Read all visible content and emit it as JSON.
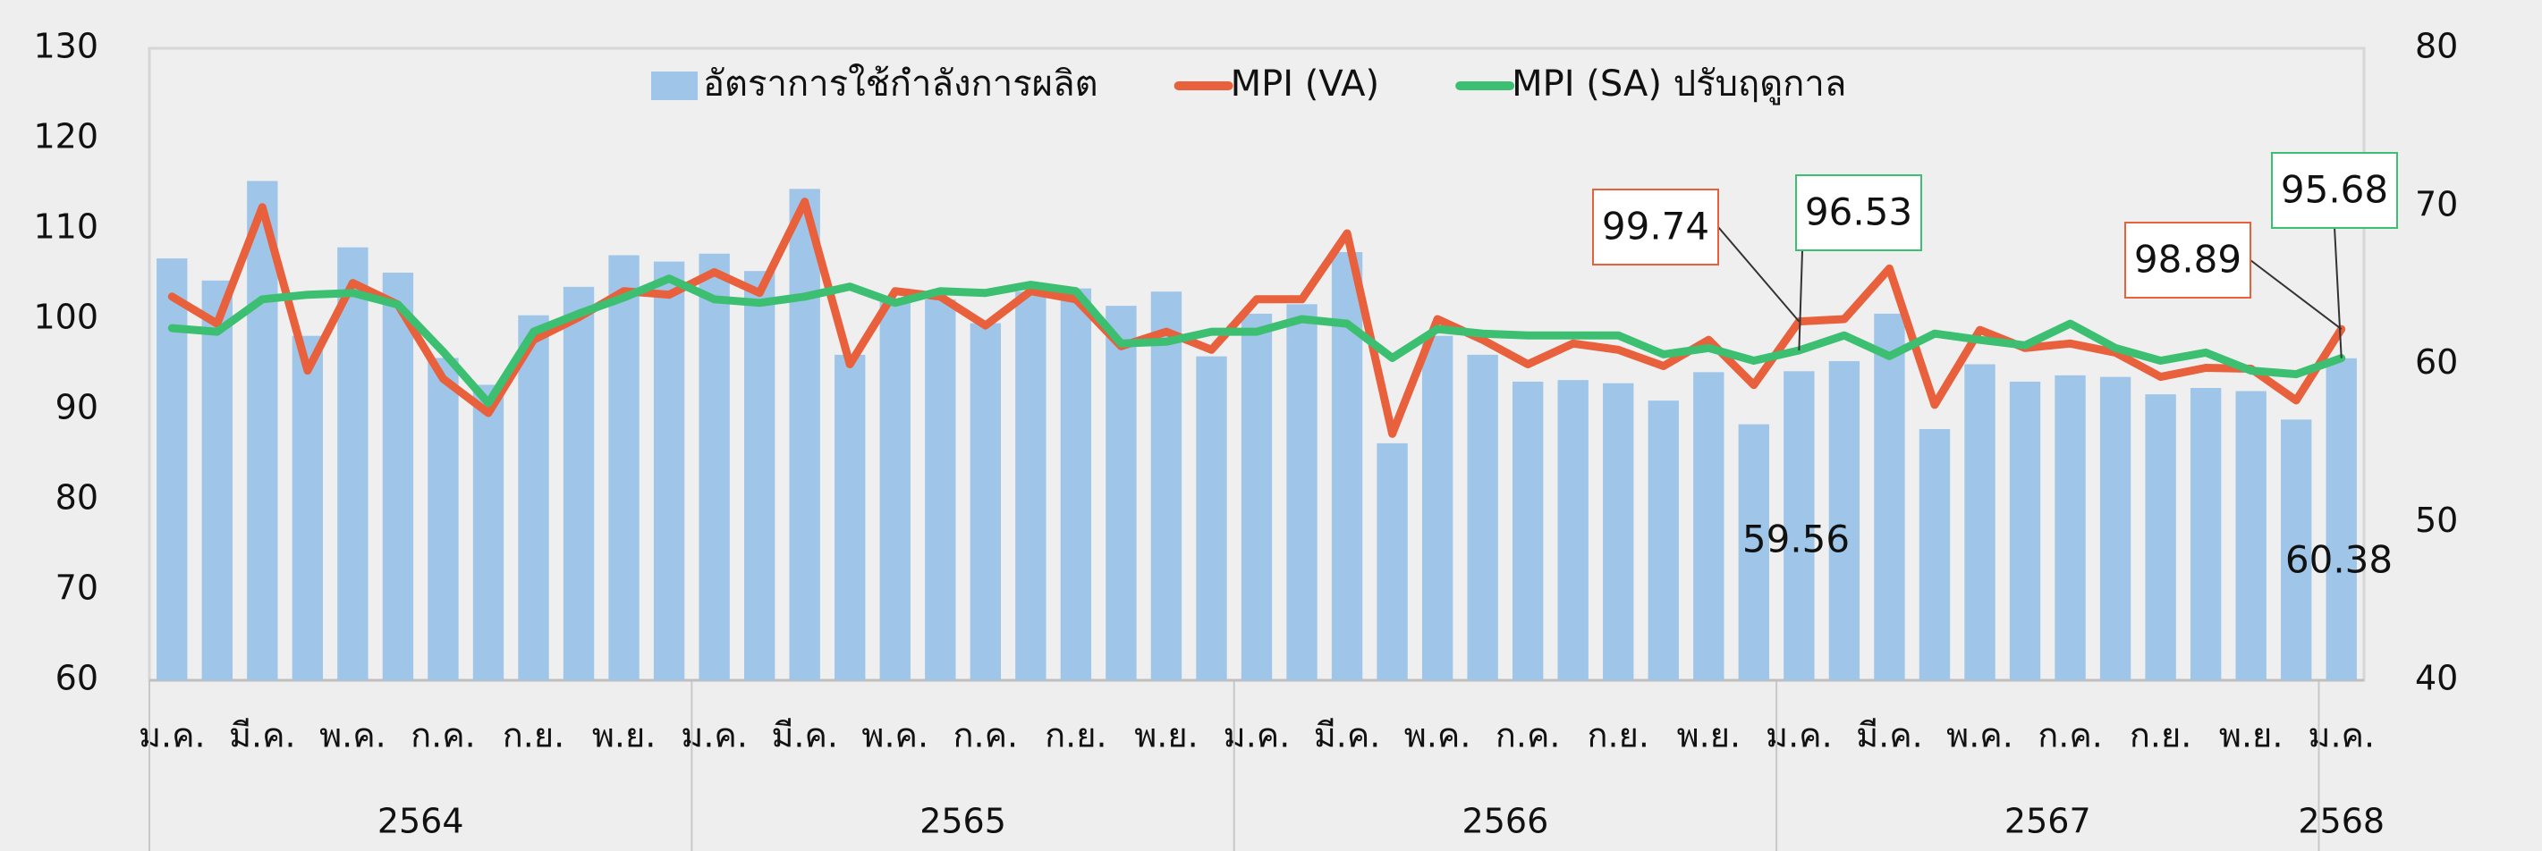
{
  "chart_data": {
    "type": "bar-line",
    "categories": [
      "ม.ค.",
      null,
      "มี.ค.",
      null,
      "พ.ค.",
      null,
      "ก.ค.",
      null,
      "ก.ย.",
      null,
      "พ.ย.",
      null,
      "ม.ค.",
      null,
      "มี.ค.",
      null,
      "พ.ค.",
      null,
      "ก.ค.",
      null,
      "ก.ย.",
      null,
      "พ.ย.",
      null,
      "ม.ค.",
      null,
      "มี.ค.",
      null,
      "พ.ค.",
      null,
      "ก.ค.",
      null,
      "ก.ย.",
      null,
      "พ.ย.",
      null,
      "ม.ค.",
      null,
      "มี.ค.",
      null,
      "พ.ค.",
      null,
      "ก.ค.",
      null,
      "ก.ย.",
      null,
      "พ.ย.",
      null,
      "ม.ค."
    ],
    "category_groups": [
      {
        "label": "2564",
        "span": 12
      },
      {
        "label": "2565",
        "span": 12
      },
      {
        "label": "2566",
        "span": 12
      },
      {
        "label": "2567",
        "span": 12
      },
      {
        "label": "2568",
        "span": 1
      }
    ],
    "series": [
      {
        "name": "อัตราการใช้กำลังการผลิต",
        "type": "bar",
        "axis": "y2",
        "color": "#9fc5e8",
        "label_indices": [
          36,
          48
        ],
        "values": [
          66.7,
          65.3,
          71.6,
          61.8,
          67.4,
          65.8,
          60.4,
          58.7,
          63.1,
          64.9,
          66.9,
          66.5,
          67.0,
          65.9,
          71.1,
          60.6,
          64.1,
          64.1,
          62.6,
          64.6,
          64.8,
          63.7,
          64.6,
          60.5,
          63.2,
          63.8,
          67.1,
          55.0,
          61.8,
          60.6,
          58.9,
          59.0,
          58.8,
          57.7,
          59.5,
          56.2,
          59.56,
          60.2,
          63.2,
          55.9,
          60.0,
          58.9,
          59.3,
          59.2,
          58.1,
          58.5,
          58.3,
          56.5,
          60.38
        ]
      },
      {
        "name": "MPI (VA)",
        "type": "line",
        "color": "#e8603c",
        "label_indices": [
          36,
          48
        ],
        "values": [
          102.5,
          99.5,
          112.4,
          94.3,
          104.0,
          101.6,
          93.4,
          89.6,
          97.7,
          100.2,
          103.1,
          102.7,
          105.2,
          102.9,
          113.0,
          95.0,
          103.1,
          102.5,
          99.3,
          103.1,
          102.2,
          97.0,
          98.6,
          96.6,
          102.2,
          102.2,
          109.5,
          87.3,
          100.0,
          97.7,
          95.0,
          97.3,
          96.6,
          94.8,
          97.7,
          92.7,
          99.74,
          100.0,
          105.6,
          90.5,
          98.8,
          96.8,
          97.3,
          96.3,
          93.6,
          94.6,
          94.5,
          91.0,
          98.89
        ]
      },
      {
        "name": "MPI (SA) ปรับฤดูกาล",
        "type": "line",
        "color": "#3dbf72",
        "label_indices": [
          36,
          48
        ],
        "values": [
          99.0,
          98.6,
          102.2,
          102.7,
          102.9,
          101.6,
          96.4,
          90.7,
          98.6,
          100.6,
          102.4,
          104.5,
          102.2,
          101.8,
          102.5,
          103.6,
          101.8,
          103.1,
          102.9,
          103.8,
          103.1,
          97.3,
          97.5,
          98.6,
          98.6,
          100.0,
          99.5,
          95.7,
          98.9,
          98.4,
          98.2,
          98.2,
          98.2,
          96.1,
          96.8,
          95.4,
          96.53,
          98.2,
          95.9,
          98.4,
          97.7,
          97.1,
          99.5,
          96.8,
          95.4,
          96.3,
          94.3,
          93.9,
          95.68
        ]
      }
    ],
    "ylim": [
      60,
      130
    ],
    "yticks": [
      60,
      70,
      80,
      90,
      100,
      110,
      120,
      130
    ],
    "y2lim": [
      40,
      80
    ],
    "y2ticks": [
      40,
      50,
      60,
      70,
      80
    ],
    "grid": false,
    "legend": "top"
  }
}
